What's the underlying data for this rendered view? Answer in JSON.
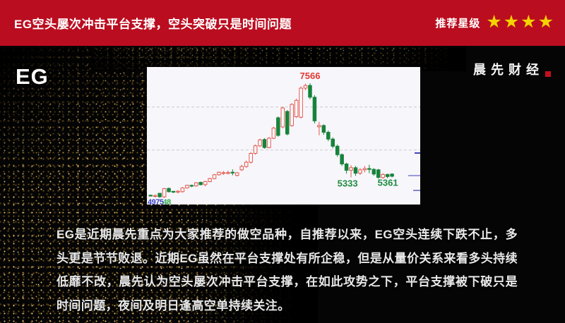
{
  "header": {
    "title": "EG空头屡次冲击平台支撑，空头突破只是时间问题",
    "rating_label": "推荐星级",
    "rating_stars": 4,
    "stars_text": "★★★★",
    "bg_color": "#bb0d20",
    "star_color": "#f3d400"
  },
  "hero": {
    "symbol": "EG",
    "brand": "晨先财经",
    "brand_accent_color": "#c3101f"
  },
  "chart_data": {
    "type": "candlestick",
    "title": "",
    "up_color": "#e4574e",
    "down_color": "#17833a",
    "bg_color": "#f7f6fb",
    "ylim": [
      4690,
      7950
    ],
    "grid": true,
    "gridline_prices": [
      7000,
      5980
    ],
    "candle_format": [
      "open",
      "close",
      "low",
      "high"
    ],
    "candles": [
      [
        4910,
        4900,
        4882,
        4922
      ],
      [
        4890,
        4902,
        4858,
        4930
      ],
      [
        4955,
        4872,
        4850,
        4962
      ],
      [
        4872,
        5068,
        4845,
        5085
      ],
      [
        5072,
        4995,
        4975,
        5095
      ],
      [
        5002,
        4992,
        4962,
        5012
      ],
      [
        4990,
        5004,
        4952,
        5032
      ],
      [
        4994,
        5085,
        4972,
        5102
      ],
      [
        5085,
        5145,
        5065,
        5162
      ],
      [
        5145,
        5132,
        5102,
        5162
      ],
      [
        5132,
        5205,
        5112,
        5222
      ],
      [
        5215,
        5162,
        5142,
        5232
      ],
      [
        5162,
        5235,
        5122,
        5252
      ],
      [
        5235,
        5305,
        5215,
        5325
      ],
      [
        5305,
        5395,
        5285,
        5415
      ],
      [
        5395,
        5455,
        5375,
        5472
      ],
      [
        5435,
        5445,
        5392,
        5482
      ],
      [
        5432,
        5448,
        5402,
        5492
      ],
      [
        5455,
        5442,
        5382,
        5525
      ],
      [
        5382,
        5442,
        5352,
        5462
      ],
      [
        5512,
        5592,
        5482,
        5632
      ],
      [
        5592,
        5692,
        5562,
        5732
      ],
      [
        5692,
        5902,
        5662,
        5932
      ],
      [
        5902,
        6082,
        5872,
        6112
      ],
      [
        6082,
        6222,
        6052,
        6252
      ],
      [
        6232,
        6042,
        6012,
        6262
      ],
      [
        6042,
        6262,
        6022,
        6292
      ],
      [
        6262,
        6502,
        6242,
        6532
      ],
      [
        6746,
        6328,
        6298,
        6776
      ],
      [
        6529,
        6980,
        6499,
        7010
      ],
      [
        6897,
        6362,
        6332,
        6927
      ],
      [
        6562,
        7063,
        6532,
        7093
      ],
      [
        6772,
        7160,
        6742,
        7200
      ],
      [
        6760,
        7448,
        6730,
        7490
      ],
      [
        7448,
        7512,
        7400,
        7552
      ],
      [
        7512,
        7232,
        7182,
        7566
      ],
      [
        7232,
        6672,
        6612,
        7282
      ],
      [
        6532,
        6562,
        6332,
        6652
      ],
      [
        6562,
        6402,
        6342,
        6592
      ],
      [
        6402,
        6242,
        6192,
        6442
      ],
      [
        6242,
        6072,
        6022,
        6282
      ],
      [
        6072,
        5872,
        5822,
        6112
      ],
      [
        5872,
        5652,
        5602,
        5902
      ],
      [
        5652,
        5502,
        5422,
        5682
      ],
      [
        5502,
        5562,
        5333,
        5622
      ],
      [
        5562,
        5432,
        5372,
        5602
      ],
      [
        5432,
        5512,
        5392,
        5552
      ],
      [
        5512,
        5542,
        5452,
        5602
      ],
      [
        5542,
        5522,
        5432,
        5632
      ],
      [
        5522,
        5412,
        5372,
        5552
      ],
      [
        5512,
        5332,
        5302,
        5532
      ],
      [
        5332,
        5402,
        5292,
        5432
      ],
      [
        5402,
        5352,
        5312,
        5422
      ],
      [
        5412,
        5361,
        5332,
        5432
      ]
    ],
    "peak_label": {
      "text": "7566",
      "price": 7566,
      "candle": 35,
      "color": "#e03a30"
    },
    "low_label": {
      "text": "5333",
      "price": 5333,
      "candle": 44,
      "color": "#1e8c40"
    },
    "last_label": {
      "text": "5361",
      "price": 5361,
      "candle": 53,
      "color": "#1e8c40"
    },
    "left_label_blue": "4975",
    "left_label_green": "48",
    "right_ticks": [
      {
        "price": 5910,
        "width": 8,
        "color": "#4444bb"
      },
      {
        "price": 5375,
        "width": 17,
        "color": "#9a9ade"
      },
      {
        "price": 5024,
        "width": 10,
        "color": "#8585d0"
      }
    ],
    "legend_position": "none"
  },
  "article": {
    "paragraph": "EG是近期晨先重点为大家推荐的做空品种，自推荐以来，EG空头连续下跌不止，多头更是节节败退。近期EG虽然在平台支撑处有所企稳，但是从量价关系来看多头持续低靡不改，晨先认为空头屡次冲击平台支撑，在如此攻势之下，平台支撑被下破只是时间问题，夜间及明日逢高空单持续关注。"
  }
}
